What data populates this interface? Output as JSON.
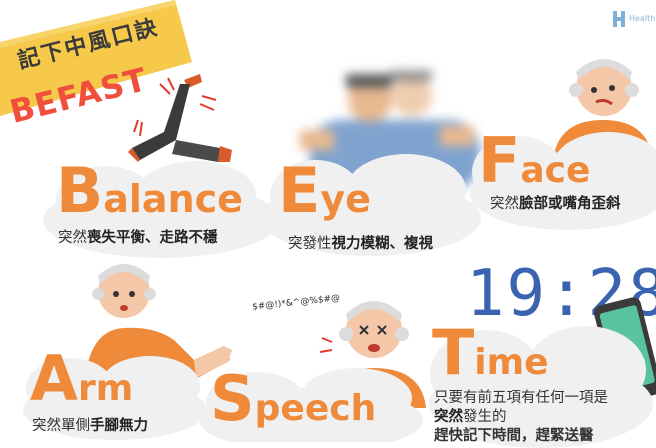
{
  "banner": {
    "title_cn": "記下中風口訣",
    "title_en": "BEFAST"
  },
  "logo": {
    "text": "Health"
  },
  "sections": {
    "balance": {
      "letter": "B",
      "rest": "alance",
      "desc_plain": "突然",
      "desc_bold": "喪失平衡、走路不穩"
    },
    "eye": {
      "letter": "E",
      "rest": "ye",
      "desc_plain": "突發性",
      "desc_bold": "視力模糊、複視"
    },
    "face": {
      "letter": "F",
      "rest": "ace",
      "desc_plain": "突然",
      "desc_bold": "臉部或嘴角歪斜"
    },
    "arm": {
      "letter": "A",
      "rest": "rm",
      "desc_plain": "突然單側",
      "desc_bold": "手腳無力"
    },
    "speech": {
      "letter": "S",
      "rest": "peech",
      "garble": "$#@!)*&^@%$#@"
    },
    "time": {
      "letter": "T",
      "rest": "ime",
      "clock": "19:28",
      "line1": "只要有前五項有任何一項是",
      "line2_bold": "突然",
      "line2_plain": "發生的",
      "line3": "趕快記下時間，趕緊送醫"
    }
  },
  "colors": {
    "orange": "#ef8a3a",
    "red": "#ef4f3b",
    "yellow": "#f6c94b",
    "cloud": "#f2f2f2",
    "clock_blue": "#3a63b0"
  }
}
